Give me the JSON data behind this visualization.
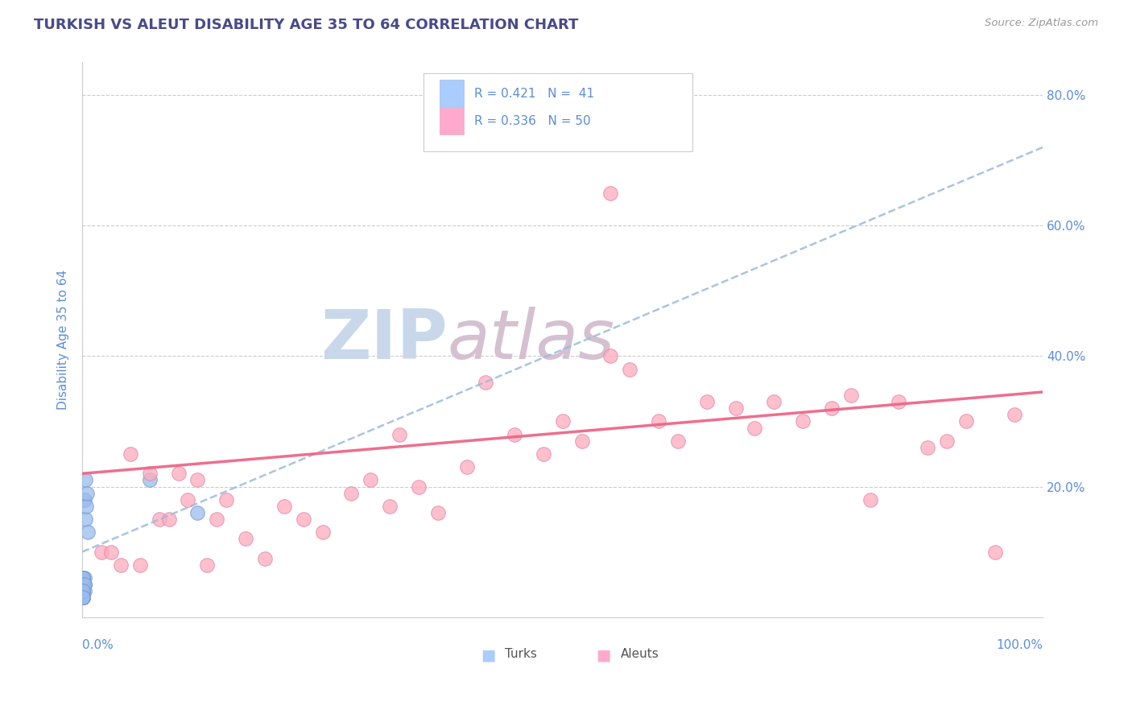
{
  "title": "TURKISH VS ALEUT DISABILITY AGE 35 TO 64 CORRELATION CHART",
  "source_text": "Source: ZipAtlas.com",
  "ylabel": "Disability Age 35 to 64",
  "title_color": "#4a4a8a",
  "source_color": "#999999",
  "axis_label_color": "#5b8dd9",
  "tick_label_color": "#5b8dd9",
  "watermark_zip": "ZIP",
  "watermark_atlas": "atlas",
  "watermark_color_zip": "#c8d8ea",
  "watermark_color_atlas": "#d4c0d0",
  "legend_r1": "R = 0.421",
  "legend_n1": "N =  41",
  "legend_r2": "R = 0.336",
  "legend_n2": "N = 50",
  "legend_color1": "#aaccff",
  "legend_color2": "#ffaacc",
  "legend_text_color": "#5b8dd9",
  "turks_color": "#99bbee",
  "turks_edge": "#7799cc",
  "aleuts_color": "#ffaabb",
  "aleuts_edge": "#dd88aa",
  "trend_turks_color": "#99bbdd",
  "trend_aleuts_color": "#ee6688",
  "turks_x": [
    0.0005,
    0.001,
    0.001,
    0.001,
    0.001,
    0.001,
    0.001,
    0.001,
    0.001,
    0.001,
    0.002,
    0.001,
    0.001,
    0.002,
    0.001,
    0.001,
    0.001,
    0.002,
    0.001,
    0.001,
    0.001,
    0.001,
    0.001,
    0.002,
    0.001,
    0.001,
    0.001,
    0.001,
    0.001,
    0.001,
    0.002,
    0.001,
    0.001,
    0.003,
    0.002,
    0.003,
    0.004,
    0.005,
    0.006,
    0.07,
    0.12
  ],
  "turks_y": [
    0.04,
    0.03,
    0.05,
    0.03,
    0.04,
    0.06,
    0.03,
    0.05,
    0.04,
    0.03,
    0.05,
    0.04,
    0.06,
    0.04,
    0.03,
    0.05,
    0.04,
    0.06,
    0.03,
    0.05,
    0.04,
    0.03,
    0.06,
    0.05,
    0.04,
    0.03,
    0.05,
    0.04,
    0.06,
    0.03,
    0.05,
    0.04,
    0.03,
    0.15,
    0.18,
    0.21,
    0.17,
    0.19,
    0.13,
    0.21,
    0.16
  ],
  "aleuts_x": [
    0.02,
    0.04,
    0.05,
    0.07,
    0.08,
    0.1,
    0.11,
    0.12,
    0.14,
    0.15,
    0.17,
    0.19,
    0.21,
    0.23,
    0.25,
    0.28,
    0.3,
    0.32,
    0.35,
    0.37,
    0.4,
    0.42,
    0.45,
    0.48,
    0.5,
    0.52,
    0.55,
    0.57,
    0.6,
    0.62,
    0.65,
    0.68,
    0.7,
    0.72,
    0.75,
    0.78,
    0.8,
    0.82,
    0.85,
    0.88,
    0.9,
    0.92,
    0.95,
    0.97,
    0.03,
    0.06,
    0.09,
    0.13,
    0.55,
    0.33
  ],
  "aleuts_y": [
    0.1,
    0.08,
    0.25,
    0.22,
    0.15,
    0.22,
    0.18,
    0.21,
    0.15,
    0.18,
    0.12,
    0.09,
    0.17,
    0.15,
    0.13,
    0.19,
    0.21,
    0.17,
    0.2,
    0.16,
    0.23,
    0.36,
    0.28,
    0.25,
    0.3,
    0.27,
    0.4,
    0.38,
    0.3,
    0.27,
    0.33,
    0.32,
    0.29,
    0.33,
    0.3,
    0.32,
    0.34,
    0.18,
    0.33,
    0.26,
    0.27,
    0.3,
    0.1,
    0.31,
    0.1,
    0.08,
    0.15,
    0.08,
    0.65,
    0.28
  ],
  "turks_trend_x0": 0.0,
  "turks_trend_y0": 0.1,
  "turks_trend_x1": 1.0,
  "turks_trend_y1": 0.72,
  "aleuts_trend_x0": 0.0,
  "aleuts_trend_y0": 0.22,
  "aleuts_trend_x1": 1.0,
  "aleuts_trend_y1": 0.345,
  "xmin": 0.0,
  "xmax": 1.0,
  "ymin": 0.0,
  "ymax": 0.85,
  "yticks": [
    0.0,
    0.2,
    0.4,
    0.6,
    0.8
  ],
  "yticklabels": [
    "",
    "20.0%",
    "40.0%",
    "60.0%",
    "80.0%"
  ],
  "grid_color": "#cccccc",
  "spine_color": "#cccccc"
}
